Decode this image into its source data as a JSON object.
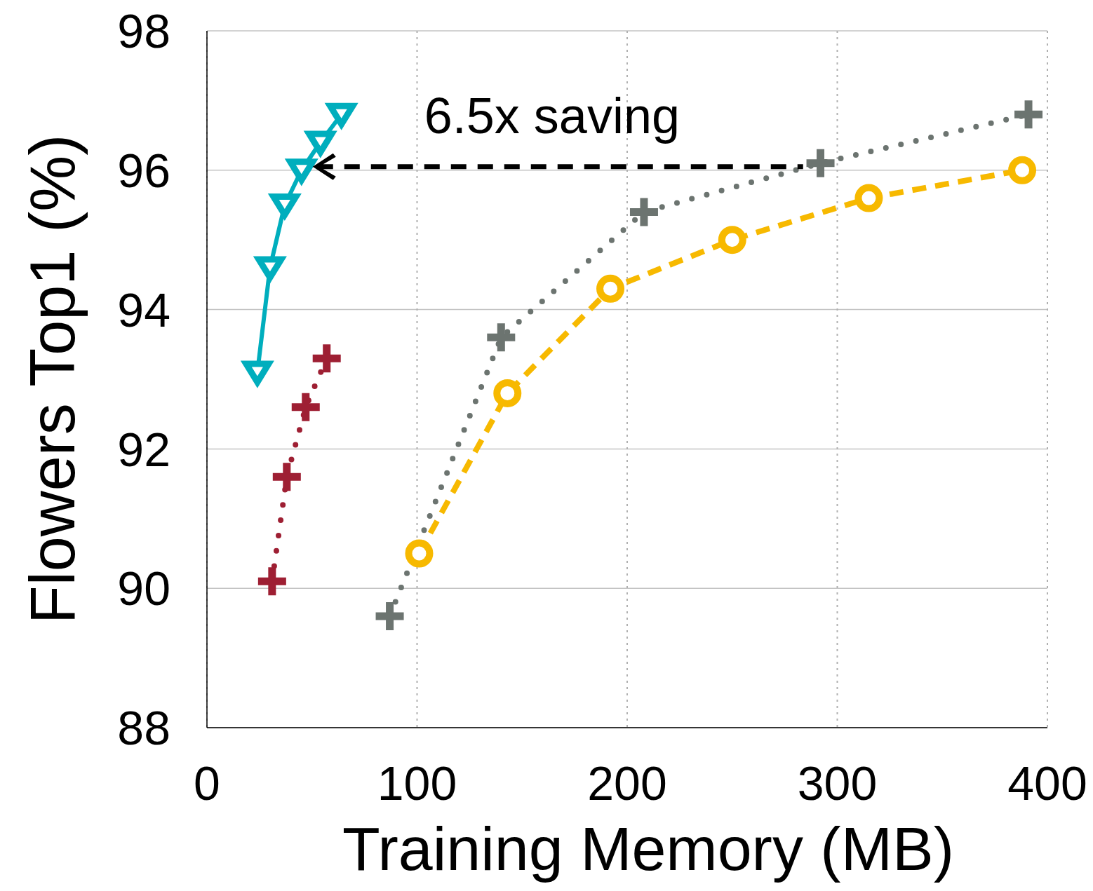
{
  "chart_data": {
    "type": "line",
    "xlabel": "Training Memory (MB)",
    "ylabel": "Flowers Top1 (%)",
    "xlim": [
      0,
      400
    ],
    "xticks": [
      0,
      100,
      200,
      300,
      400
    ],
    "ylim": [
      88,
      98
    ],
    "yticks": [
      88,
      90,
      92,
      94,
      96,
      98
    ],
    "grid": true,
    "annotations": [
      {
        "text": "6.5x saving",
        "x": 50,
        "y": 96.05
      }
    ],
    "series": [
      {
        "color": "#00aebd",
        "marker": "triangle",
        "line_style": "solid",
        "x": [
          24,
          30,
          37,
          45,
          54,
          64
        ],
        "values": [
          93.1,
          94.6,
          95.5,
          96.0,
          96.4,
          96.8
        ]
      },
      {
        "color": "#9e1f33",
        "marker": "cross",
        "line_style": "dotted",
        "x": [
          31,
          38,
          47,
          57
        ],
        "values": [
          90.1,
          91.6,
          92.6,
          93.3
        ]
      },
      {
        "color": "#6c7470",
        "marker": "cross",
        "line_style": "dotted",
        "x": [
          87,
          140,
          208,
          292,
          391
        ],
        "values": [
          89.6,
          93.6,
          95.4,
          96.1,
          96.8
        ]
      },
      {
        "color": "#f7b900",
        "marker": "circle",
        "line_style": "dashed",
        "x": [
          101,
          143,
          192,
          250,
          315,
          388
        ],
        "values": [
          90.5,
          92.8,
          94.3,
          95.0,
          95.6,
          96.0
        ]
      }
    ]
  }
}
